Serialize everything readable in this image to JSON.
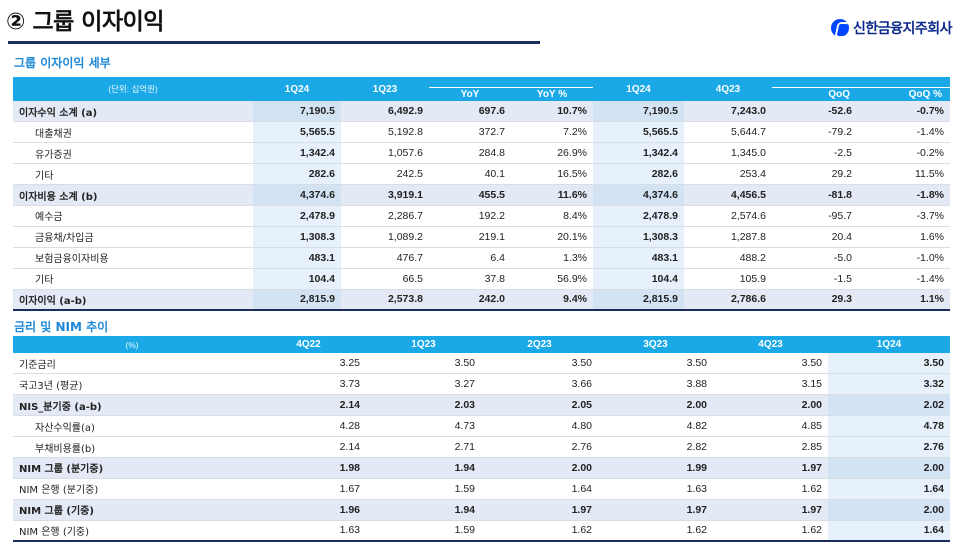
{
  "header": {
    "title": "② 그룹 이자이익",
    "brand": "신한금융지주회사"
  },
  "table1": {
    "section_title": "그룹 이자이익 세부",
    "unit": "(단위: 십억원)",
    "columns": [
      "1Q24",
      "1Q23",
      "YoY",
      "YoY %",
      "1Q24",
      "4Q23",
      "QoQ",
      "QoQ %"
    ],
    "rows": [
      {
        "label": "이자수익 소계 (a)",
        "sub": true,
        "indent": false,
        "values": [
          "7,190.5",
          "6,492.9",
          "697.6",
          "10.7%",
          "7,190.5",
          "7,243.0",
          "-52.6",
          "-0.7%"
        ]
      },
      {
        "label": "대출채권",
        "sub": false,
        "indent": true,
        "values": [
          "5,565.5",
          "5,192.8",
          "372.7",
          "7.2%",
          "5,565.5",
          "5,644.7",
          "-79.2",
          "-1.4%"
        ]
      },
      {
        "label": "유가증권",
        "sub": false,
        "indent": true,
        "values": [
          "1,342.4",
          "1,057.6",
          "284.8",
          "26.9%",
          "1,342.4",
          "1,345.0",
          "-2.5",
          "-0.2%"
        ]
      },
      {
        "label": "기타",
        "sub": false,
        "indent": true,
        "values": [
          "282.6",
          "242.5",
          "40.1",
          "16.5%",
          "282.6",
          "253.4",
          "29.2",
          "11.5%"
        ]
      },
      {
        "label": "이자비용 소계 (b)",
        "sub": true,
        "indent": false,
        "values": [
          "4,374.6",
          "3,919.1",
          "455.5",
          "11.6%",
          "4,374.6",
          "4,456.5",
          "-81.8",
          "-1.8%"
        ]
      },
      {
        "label": "예수금",
        "sub": false,
        "indent": true,
        "values": [
          "2,478.9",
          "2,286.7",
          "192.2",
          "8.4%",
          "2,478.9",
          "2,574.6",
          "-95.7",
          "-3.7%"
        ]
      },
      {
        "label": "금융채/차입금",
        "sub": false,
        "indent": true,
        "values": [
          "1,308.3",
          "1,089.2",
          "219.1",
          "20.1%",
          "1,308.3",
          "1,287.8",
          "20.4",
          "1.6%"
        ]
      },
      {
        "label": "보험금융이자비용",
        "sub": false,
        "indent": true,
        "values": [
          "483.1",
          "476.7",
          "6.4",
          "1.3%",
          "483.1",
          "488.2",
          "-5.0",
          "-1.0%"
        ]
      },
      {
        "label": "기타",
        "sub": false,
        "indent": true,
        "values": [
          "104.4",
          "66.5",
          "37.8",
          "56.9%",
          "104.4",
          "105.9",
          "-1.5",
          "-1.4%"
        ]
      },
      {
        "label": "이자이익 (a-b)",
        "sub": true,
        "indent": false,
        "values": [
          "2,815.9",
          "2,573.8",
          "242.0",
          "9.4%",
          "2,815.9",
          "2,786.6",
          "29.3",
          "1.1%"
        ]
      }
    ]
  },
  "table2": {
    "section_title": "금리 및 NIM 추이",
    "unit": "(%)",
    "columns": [
      "4Q22",
      "1Q23",
      "2Q23",
      "3Q23",
      "4Q23",
      "1Q24"
    ],
    "rows": [
      {
        "label": "기준금리",
        "sub": false,
        "indent": false,
        "values": [
          "3.25",
          "3.50",
          "3.50",
          "3.50",
          "3.50",
          "3.50"
        ]
      },
      {
        "label": "국고3년 (평균)",
        "sub": false,
        "indent": false,
        "values": [
          "3.73",
          "3.27",
          "3.66",
          "3.88",
          "3.15",
          "3.32"
        ]
      },
      {
        "label": "NIS_분기중 (a-b)",
        "sub": true,
        "indent": false,
        "values": [
          "2.14",
          "2.03",
          "2.05",
          "2.00",
          "2.00",
          "2.02"
        ]
      },
      {
        "label": "자산수익률(a)",
        "sub": false,
        "indent": true,
        "values": [
          "4.28",
          "4.73",
          "4.80",
          "4.82",
          "4.85",
          "4.78"
        ]
      },
      {
        "label": "부채비용률(b)",
        "sub": false,
        "indent": true,
        "values": [
          "2.14",
          "2.71",
          "2.76",
          "2.82",
          "2.85",
          "2.76"
        ]
      },
      {
        "label": "NIM 그룹 (분기중)",
        "sub": true,
        "indent": false,
        "values": [
          "1.98",
          "1.94",
          "2.00",
          "1.99",
          "1.97",
          "2.00"
        ]
      },
      {
        "label": "NIM 은행 (분기중)",
        "sub": false,
        "indent": false,
        "values": [
          "1.67",
          "1.59",
          "1.64",
          "1.63",
          "1.62",
          "1.64"
        ]
      },
      {
        "label": "NIM 그룹 (기중)",
        "sub": true,
        "indent": false,
        "values": [
          "1.96",
          "1.94",
          "1.97",
          "1.97",
          "1.97",
          "2.00"
        ]
      },
      {
        "label": "NIM 은행 (기중)",
        "sub": false,
        "indent": false,
        "values": [
          "1.63",
          "1.59",
          "1.62",
          "1.62",
          "1.62",
          "1.64"
        ]
      }
    ]
  }
}
